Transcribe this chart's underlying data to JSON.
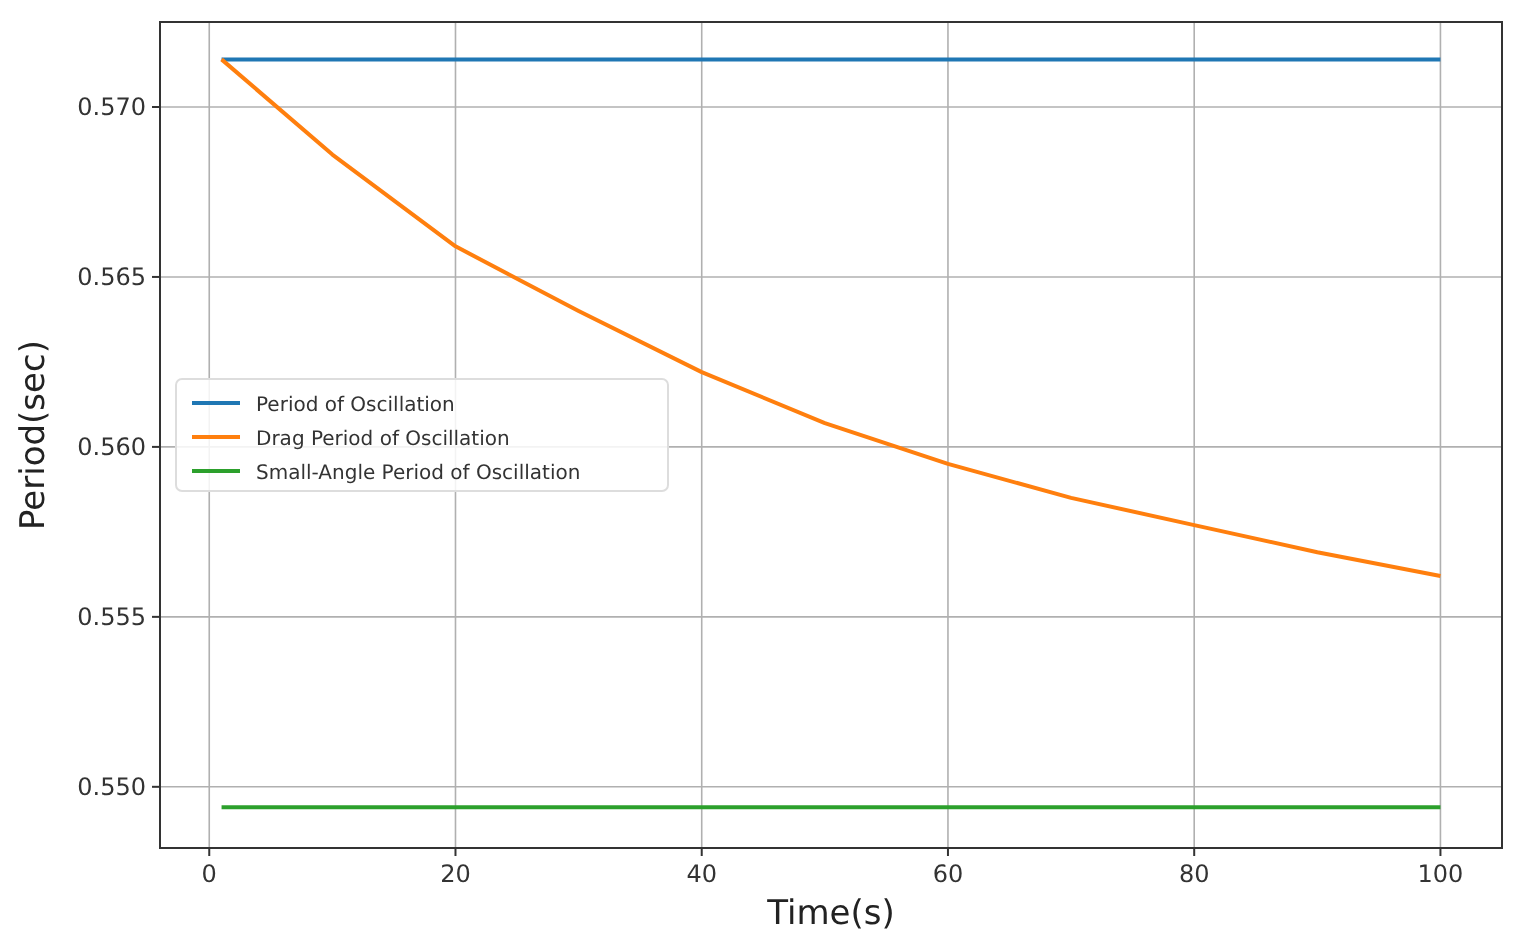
{
  "chart_data": {
    "type": "line",
    "xlabel": "Time(s)",
    "ylabel": "Period(sec)",
    "xlim": [
      -4,
      105
    ],
    "ylim": [
      0.5482,
      0.5725
    ],
    "xticks": [
      0,
      20,
      40,
      60,
      80,
      100
    ],
    "yticks": [
      {
        "value": 0.55,
        "label": "0.550"
      },
      {
        "value": 0.555,
        "label": "0.555"
      },
      {
        "value": 0.56,
        "label": "0.560"
      },
      {
        "value": 0.565,
        "label": "0.565"
      },
      {
        "value": 0.57,
        "label": "0.570"
      }
    ],
    "grid": true,
    "legend": "left",
    "line_style": "solid",
    "marker": "none",
    "x": [
      1,
      10,
      20,
      30,
      40,
      50,
      60,
      70,
      80,
      90,
      100
    ],
    "series": [
      {
        "name": "Period of Oscillation",
        "color": "#1f77b4",
        "values": [
          0.5714,
          0.5714,
          0.5714,
          0.5714,
          0.5714,
          0.5714,
          0.5714,
          0.5714,
          0.5714,
          0.5714,
          0.5714
        ]
      },
      {
        "name": "Drag Period of Oscillation",
        "color": "#ff7f0e",
        "values": [
          0.5714,
          0.5686,
          0.5659,
          0.564,
          0.5622,
          0.5607,
          0.5595,
          0.5585,
          0.5577,
          0.5569,
          0.5562
        ]
      },
      {
        "name": "Small-Angle Period of Oscillation",
        "color": "#2ca02c",
        "values": [
          0.5494,
          0.5494,
          0.5494,
          0.5494,
          0.5494,
          0.5494,
          0.5494,
          0.5494,
          0.5494,
          0.5494,
          0.5494
        ]
      }
    ]
  }
}
